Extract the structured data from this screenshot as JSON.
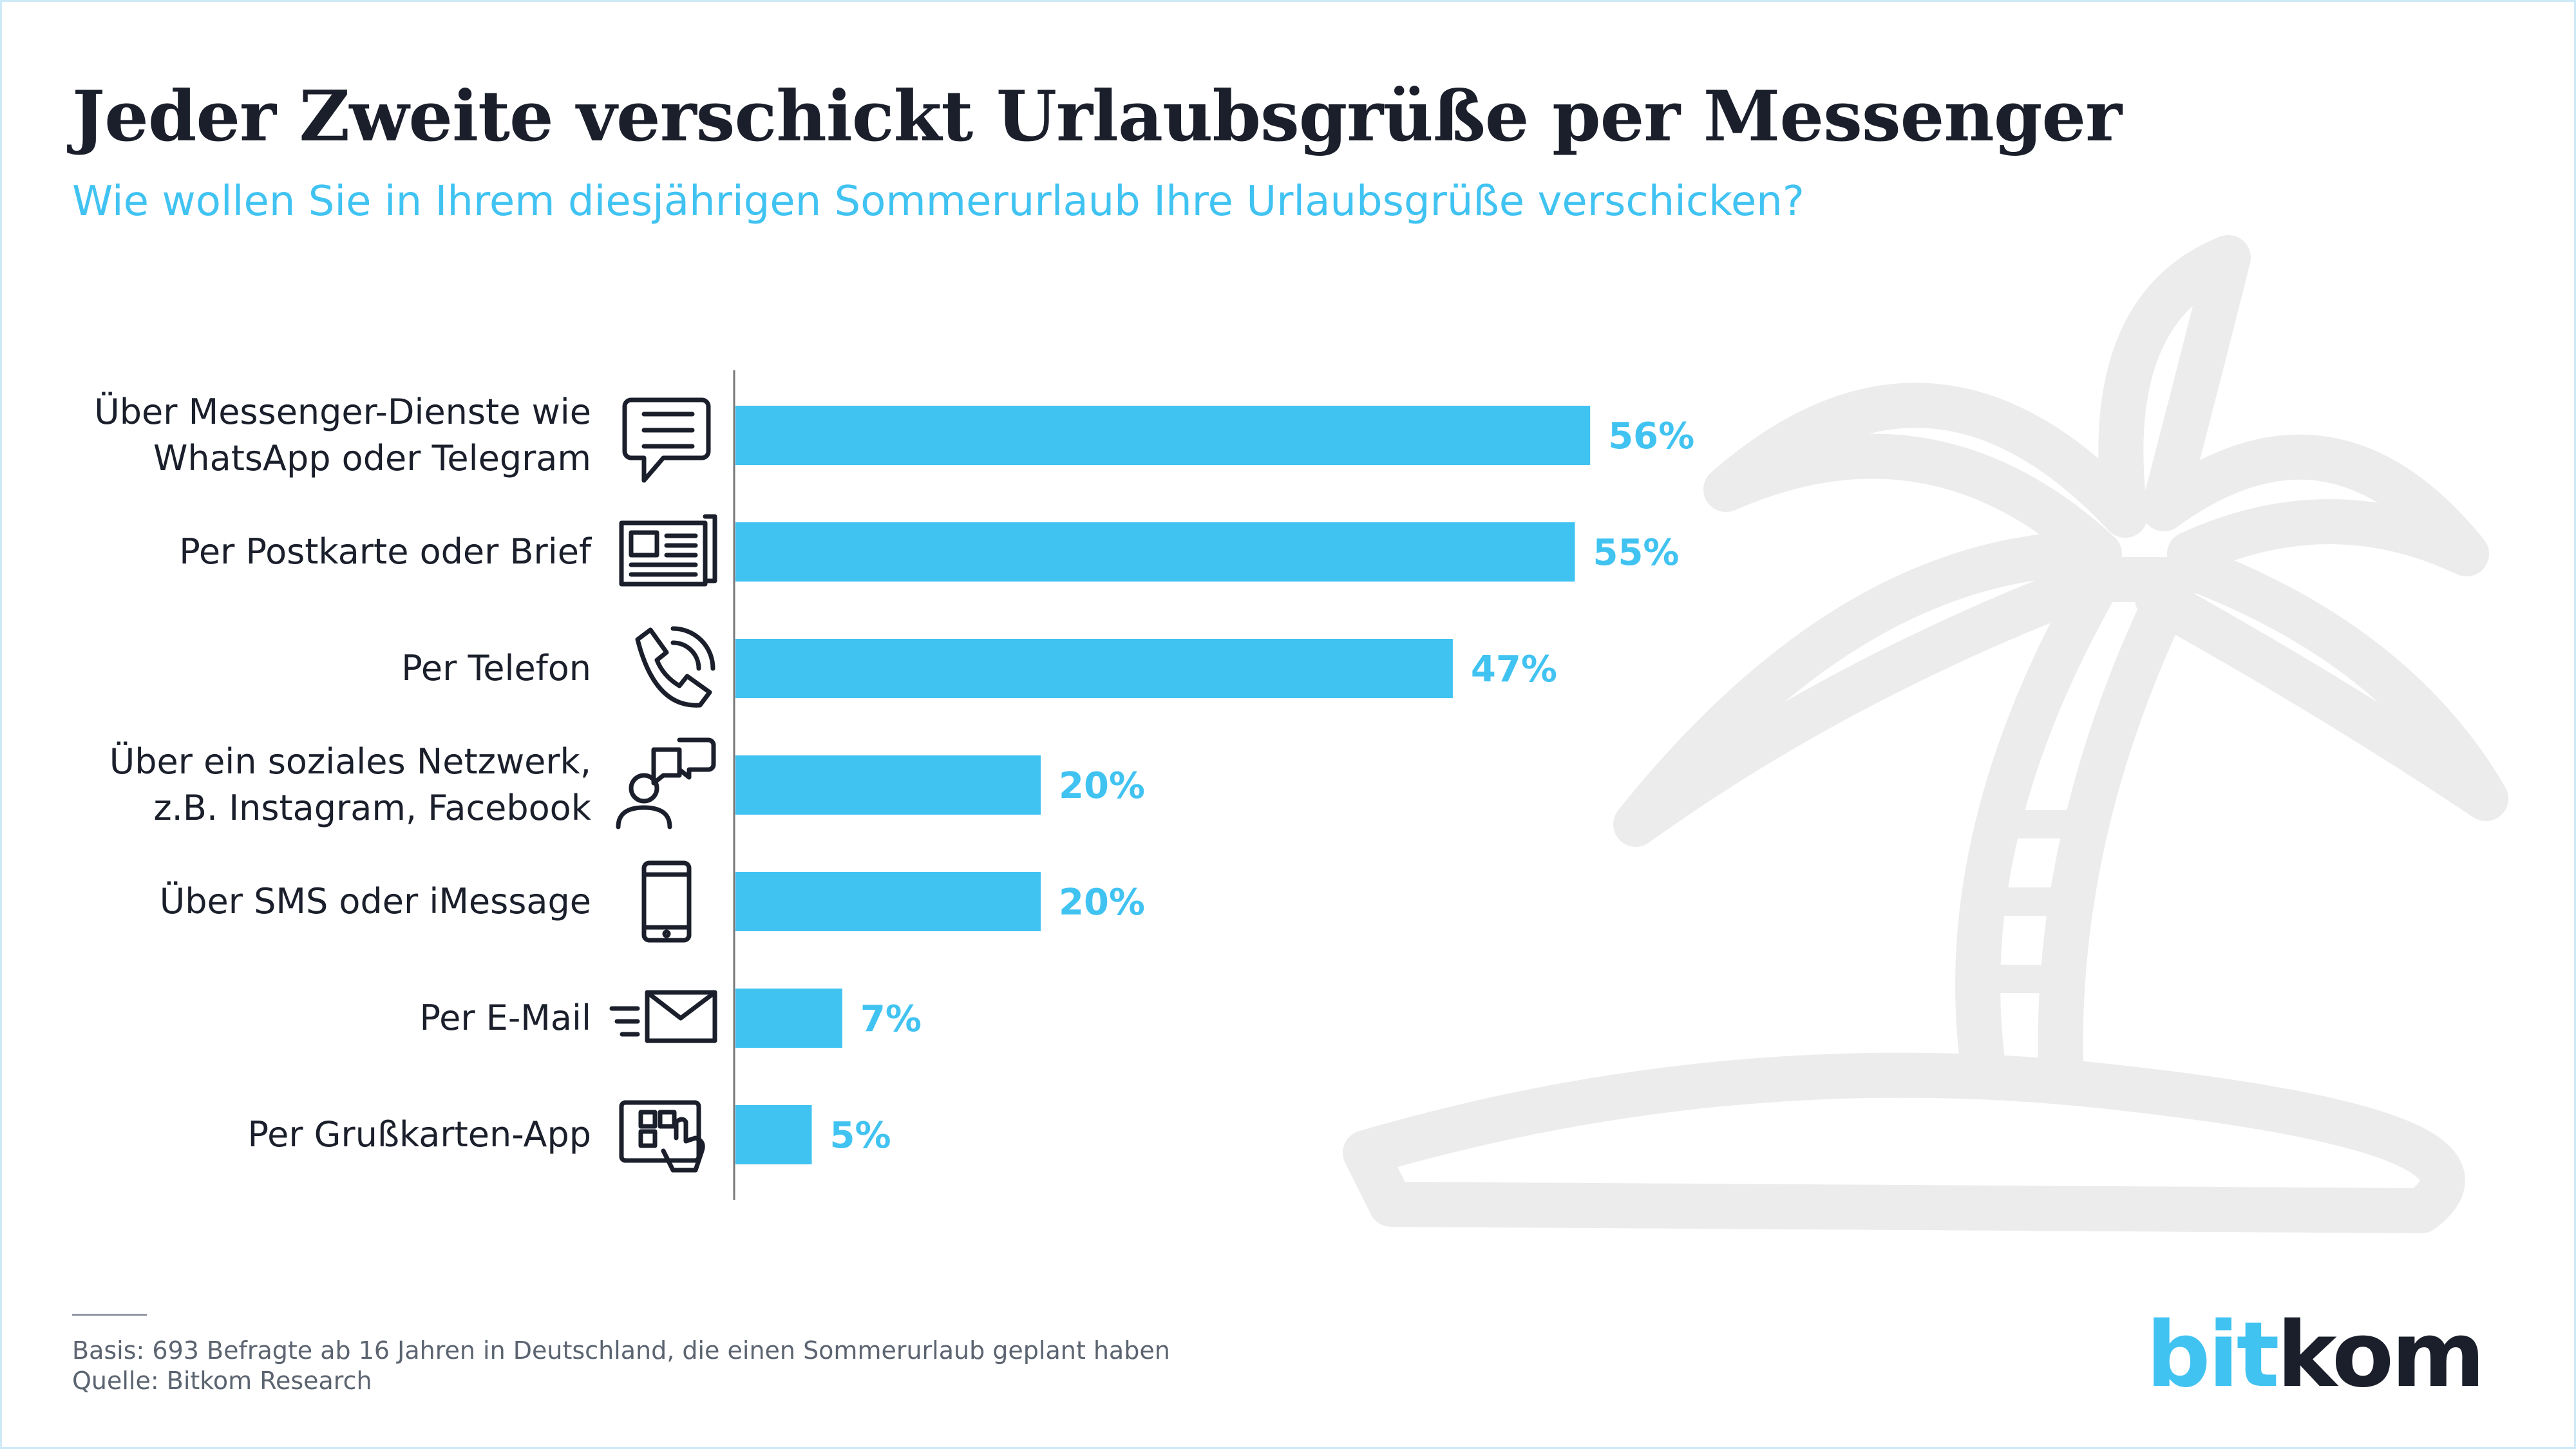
{
  "title": "Jeder Zweite verschickt Urlaubsgrüße per Messenger",
  "subtitle": "Wie wollen Sie in Ihrem diesjährigen Sommerurlaub Ihre Urlaubsgrüße verschicken?",
  "chart_data": {
    "type": "bar",
    "orientation": "horizontal",
    "categories": [
      [
        "Über Messenger-Dienste wie",
        "WhatsApp oder Telegram"
      ],
      [
        "Per Postkarte oder Brief"
      ],
      [
        "Per Telefon"
      ],
      [
        "Über ein soziales Netzwerk,",
        "z.B. Instagram, Facebook"
      ],
      [
        "Über SMS oder iMessage"
      ],
      [
        "Per E-Mail"
      ],
      [
        "Per Grußkarten-App"
      ]
    ],
    "icons": [
      "chat-bubble-icon",
      "newspaper-icon",
      "phone-icon",
      "social-person-chat-icon",
      "smartphone-icon",
      "email-icon",
      "tablet-app-icon"
    ],
    "values": [
      56,
      55,
      47,
      20,
      20,
      7,
      5
    ],
    "value_labels": [
      "56%",
      "55%",
      "47%",
      "20%",
      "20%",
      "7%",
      "5%"
    ],
    "unit": "%",
    "xlim": [
      0,
      100
    ],
    "grid": false,
    "bar_color": "#41c3f2",
    "label_color": "#41c3f2"
  },
  "footer": {
    "basis": "Basis: 693 Befragte ab 16 Jahren in Deutschland, die einen Sommerurlaub geplant haben",
    "source": "Quelle: Bitkom Research"
  },
  "logo": {
    "part1": "bit",
    "part2": "kom"
  },
  "colors": {
    "accent": "#41c3f2",
    "text": "#1a1f2b",
    "palm": "#ececec"
  }
}
